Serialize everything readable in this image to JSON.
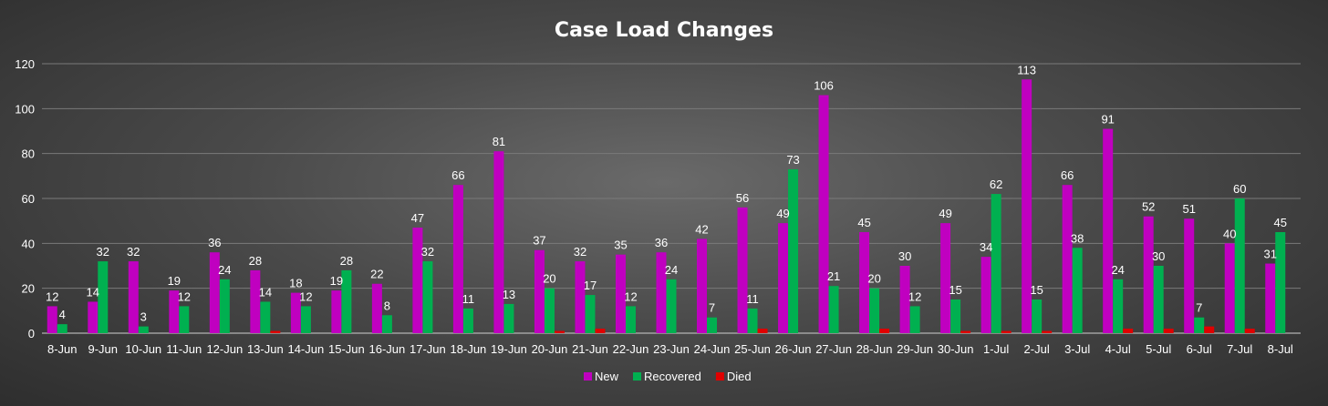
{
  "chart_data": {
    "type": "bar",
    "title": "Case Load Changes",
    "xlabel": "",
    "ylabel": "",
    "ylim": [
      0,
      120
    ],
    "yticks": [
      0,
      20,
      40,
      60,
      80,
      100,
      120
    ],
    "grid": true,
    "legend_position": "bottom",
    "categories": [
      "8-Jun",
      "9-Jun",
      "10-Jun",
      "11-Jun",
      "12-Jun",
      "13-Jun",
      "14-Jun",
      "15-Jun",
      "16-Jun",
      "17-Jun",
      "18-Jun",
      "19-Jun",
      "20-Jun",
      "21-Jun",
      "22-Jun",
      "23-Jun",
      "24-Jun",
      "25-Jun",
      "26-Jun",
      "27-Jun",
      "28-Jun",
      "29-Jun",
      "30-Jun",
      "1-Jul",
      "2-Jul",
      "3-Jul",
      "4-Jul",
      "5-Jul",
      "6-Jul",
      "7-Jul",
      "8-Jul"
    ],
    "series": [
      {
        "name": "New",
        "color": "#c000c0",
        "values": [
          12,
          14,
          32,
          19,
          36,
          28,
          18,
          19,
          22,
          47,
          66,
          81,
          37,
          32,
          35,
          36,
          42,
          56,
          49,
          106,
          45,
          30,
          49,
          34,
          113,
          66,
          91,
          52,
          51,
          40,
          31
        ],
        "labels": [
          "12",
          "14",
          "32",
          "19",
          "36",
          "28",
          "18",
          "19",
          "22",
          "47",
          "66",
          "81",
          "37",
          "32",
          "35",
          "36",
          "42",
          "56",
          "49",
          "106",
          "45",
          "30",
          "49",
          "34",
          "113",
          "66",
          "91",
          "52",
          "51",
          "40",
          "31"
        ]
      },
      {
        "name": "Recovered",
        "color": "#00b050",
        "values": [
          4,
          32,
          3,
          12,
          24,
          14,
          12,
          28,
          8,
          32,
          11,
          13,
          20,
          17,
          12,
          24,
          7,
          11,
          73,
          21,
          20,
          12,
          15,
          62,
          15,
          38,
          24,
          30,
          7,
          60,
          45
        ],
        "labels": [
          "4",
          "32",
          "3",
          "12",
          "24",
          "14",
          "12",
          "28",
          "8",
          "32",
          "11",
          "13",
          "20",
          "17",
          "12",
          "24",
          "7",
          "11",
          "73",
          "21",
          "20",
          "12",
          "15",
          "62",
          "15",
          "38",
          "24",
          "30",
          "7",
          "60",
          "45"
        ]
      },
      {
        "name": "Died",
        "color": "#e00000",
        "values": [
          0,
          0,
          0,
          0,
          0,
          1,
          0,
          0,
          0,
          0,
          0,
          0,
          1,
          2,
          0,
          0,
          0,
          2,
          0,
          0,
          2,
          0,
          1,
          1,
          1,
          0,
          2,
          2,
          3,
          2,
          0
        ],
        "labels": []
      }
    ]
  }
}
